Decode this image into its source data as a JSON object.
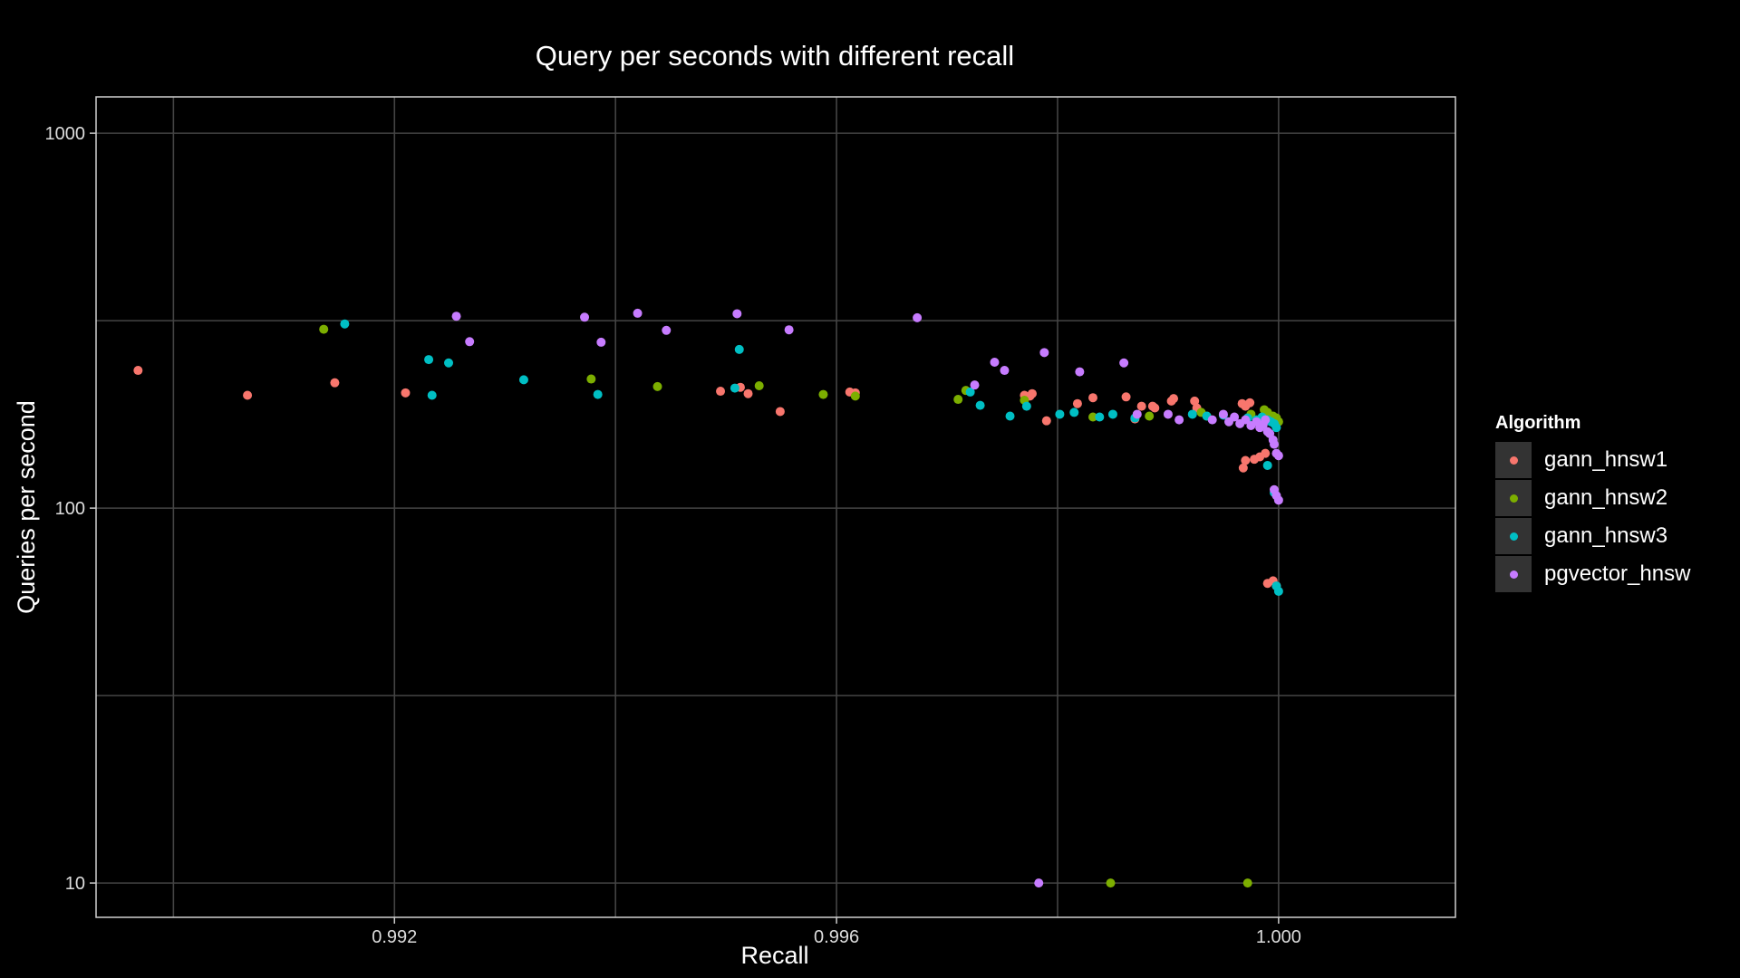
{
  "chart_data": {
    "type": "scatter",
    "title": "Query per seconds with different recall",
    "xlabel": "Recall",
    "ylabel": "Queries per second",
    "xlim": [
      0.9893,
      1.0016
    ],
    "ylim": [
      8.1,
      1250
    ],
    "yscale": "log",
    "xticks": [
      0.992,
      0.996,
      1.0
    ],
    "xtick_labels": [
      "0.992",
      "0.996",
      "1.000"
    ],
    "yticks": [
      10,
      100,
      1000
    ],
    "ytick_labels": [
      "10",
      "100",
      "1000"
    ],
    "grid": true,
    "legend": {
      "title": "Algorithm",
      "position": "right"
    },
    "series": [
      {
        "name": "gann_hnsw1",
        "color": "#F8766D",
        "points": [
          [
            0.98968,
            233
          ],
          [
            0.99067,
            200
          ],
          [
            0.99146,
            216
          ],
          [
            0.9921,
            203
          ],
          [
            0.99495,
            205
          ],
          [
            0.99513,
            210
          ],
          [
            0.9952,
            202
          ],
          [
            0.99549,
            181
          ],
          [
            0.99612,
            204
          ],
          [
            0.99617,
            203
          ],
          [
            0.9977,
            200
          ],
          [
            0.99775,
            199
          ],
          [
            0.99777,
            202
          ],
          [
            0.9979,
            171
          ],
          [
            0.99818,
            190
          ],
          [
            0.99832,
            197
          ],
          [
            0.99862,
            198
          ],
          [
            0.9987,
            173
          ],
          [
            0.99876,
            187
          ],
          [
            0.99886,
            187
          ],
          [
            0.99888,
            185
          ],
          [
            0.99903,
            193
          ],
          [
            0.99905,
            196
          ],
          [
            0.99924,
            193
          ],
          [
            0.99926,
            185
          ],
          [
            0.99967,
            190
          ],
          [
            0.9997,
            187
          ],
          [
            0.99974,
            191
          ],
          [
            0.9997,
            134
          ],
          [
            0.99968,
            128
          ],
          [
            0.99978,
            135
          ],
          [
            0.99983,
            137
          ],
          [
            0.99988,
            140
          ],
          [
            0.9999,
            63
          ],
          [
            0.99995,
            64
          ],
          [
            0.99998,
            62
          ]
        ]
      },
      {
        "name": "gann_hnsw2",
        "color": "#7CAE00",
        "points": [
          [
            0.99136,
            300
          ],
          [
            0.99378,
            221
          ],
          [
            0.99438,
            211
          ],
          [
            0.9953,
            212
          ],
          [
            0.99588,
            201
          ],
          [
            0.99617,
            199
          ],
          [
            0.9971,
            195
          ],
          [
            0.99717,
            206
          ],
          [
            0.9977,
            194
          ],
          [
            0.99848,
            10
          ],
          [
            0.99832,
            175
          ],
          [
            0.99883,
            176
          ],
          [
            0.9993,
            180
          ],
          [
            0.99935,
            176
          ],
          [
            0.99972,
            10
          ],
          [
            0.99975,
            178
          ],
          [
            0.99987,
            183
          ],
          [
            0.9999,
            180
          ],
          [
            0.99995,
            176
          ],
          [
            0.99998,
            174
          ],
          [
            1.0,
            170
          ]
        ]
      },
      {
        "name": "gann_hnsw3",
        "color": "#00BFC4",
        "points": [
          [
            0.99155,
            310
          ],
          [
            0.99231,
            249
          ],
          [
            0.99234,
            200
          ],
          [
            0.99249,
            244
          ],
          [
            0.99317,
            220
          ],
          [
            0.99384,
            201
          ],
          [
            0.99512,
            265
          ],
          [
            0.99508,
            209
          ],
          [
            0.99721,
            204
          ],
          [
            0.9973,
            188
          ],
          [
            0.99757,
            176
          ],
          [
            0.99772,
            187
          ],
          [
            0.99802,
            178
          ],
          [
            0.99815,
            180
          ],
          [
            0.99838,
            175
          ],
          [
            0.9985,
            178
          ],
          [
            0.9987,
            174
          ],
          [
            0.99922,
            178
          ],
          [
            0.99935,
            176
          ],
          [
            0.9995,
            177
          ],
          [
            0.99972,
            174
          ],
          [
            0.9998,
            172
          ],
          [
            0.99985,
            175
          ],
          [
            0.9999,
            172
          ],
          [
            0.99993,
            170
          ],
          [
            0.99996,
            168
          ],
          [
            0.99998,
            164
          ],
          [
            0.9999,
            130
          ],
          [
            0.99996,
            110
          ],
          [
            0.99998,
            62
          ],
          [
            1.0,
            60
          ]
        ]
      },
      {
        "name": "pgvector_hnsw",
        "color": "#C77CFF",
        "points": [
          [
            0.99256,
            325
          ],
          [
            0.99268,
            278
          ],
          [
            0.99372,
            323
          ],
          [
            0.99387,
            277
          ],
          [
            0.9942,
            331
          ],
          [
            0.99446,
            298
          ],
          [
            0.9951,
            330
          ],
          [
            0.99557,
            299
          ],
          [
            0.99673,
            322
          ],
          [
            0.99725,
            213
          ],
          [
            0.99743,
            245
          ],
          [
            0.99752,
            233
          ],
          [
            0.99783,
            10
          ],
          [
            0.99788,
            260
          ],
          [
            0.9982,
            231
          ],
          [
            0.9986,
            244
          ],
          [
            0.99872,
            178
          ],
          [
            0.999,
            178
          ],
          [
            0.9991,
            172
          ],
          [
            0.9994,
            172
          ],
          [
            0.9995,
            178
          ],
          [
            0.99955,
            170
          ],
          [
            0.9996,
            175
          ],
          [
            0.99965,
            168
          ],
          [
            0.9997,
            172
          ],
          [
            0.99975,
            166
          ],
          [
            0.9998,
            170
          ],
          [
            0.99983,
            164
          ],
          [
            0.99986,
            167
          ],
          [
            0.99988,
            172
          ],
          [
            0.9999,
            160
          ],
          [
            0.99992,
            158
          ],
          [
            0.99995,
            152
          ],
          [
            0.99996,
            148
          ],
          [
            0.99998,
            140
          ],
          [
            1.0,
            138
          ],
          [
            0.99996,
            112
          ],
          [
            0.99998,
            108
          ],
          [
            1.0,
            105
          ]
        ]
      }
    ]
  }
}
